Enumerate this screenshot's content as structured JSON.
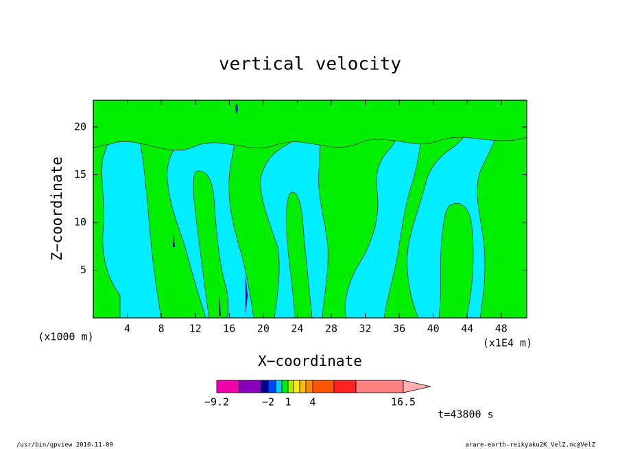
{
  "chart_data": {
    "type": "contour",
    "title": "vertical velocity",
    "x_label": "X−coordinate",
    "y_label": "Z−coordinate",
    "x_unit": "(x1E4 m)",
    "y_unit": "(x1000 m)",
    "xlim": [
      0,
      51
    ],
    "ylim": [
      0,
      22.8
    ],
    "xticks": [
      4,
      8,
      12,
      16,
      20,
      24,
      28,
      32,
      36,
      40,
      44,
      48
    ],
    "yticks": [
      5,
      10,
      15,
      20
    ],
    "colorbar": {
      "colors": [
        "#ee00aa",
        "#8800bb",
        "#000099",
        "#0044ff",
        "#00ccff",
        "#00ee00",
        "#aaee00",
        "#ffee00",
        "#ffbb00",
        "#ff8800",
        "#ff5500",
        "#ff2222",
        "#ff8080",
        "#ffb0b0"
      ],
      "ticks": [
        {
          "value": -9.2,
          "label": "−9.2"
        },
        {
          "value": -2,
          "label": "−2"
        },
        1,
        4,
        16.5
      ]
    },
    "time_label": "t=43800 s",
    "footer_left": "/usr/bin/gpview  2010-11-09",
    "footer_right": "arare-earth-reikyaku2K_VelZ.nc@VelZ"
  }
}
